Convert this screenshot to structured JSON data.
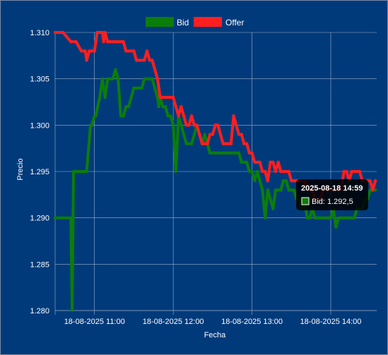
{
  "colors": {
    "background": "#003a7a",
    "grid": "#9fb0cc",
    "bid": "#0b7d0b",
    "offer": "#ff1f1f",
    "tooltip_bg": "#000000",
    "text": "#ffffff"
  },
  "chart_data": {
    "type": "line",
    "title": "",
    "xlabel": "Fecha",
    "ylabel": "Precio",
    "ylim": [
      1.28,
      1.31
    ],
    "xlim_minutes": [
      630,
      875
    ],
    "grid": true,
    "legend_position": "top",
    "legend": [
      {
        "name": "Bid",
        "color": "#0b7d0b"
      },
      {
        "name": "Offer",
        "color": "#ff1f1f"
      }
    ],
    "y_ticks": [
      "1.280",
      "1.285",
      "1.290",
      "1.295",
      "1.300",
      "1.305",
      "1.310"
    ],
    "y_tick_values": [
      1.28,
      1.285,
      1.29,
      1.295,
      1.3,
      1.305,
      1.31
    ],
    "x_ticks": [
      "18-08-2025 11:00",
      "18-08-2025 12:00",
      "18-08-2025 13:00",
      "18-08-2025 14:00"
    ],
    "x_tick_minutes": [
      660,
      720,
      780,
      840
    ],
    "series": [
      {
        "name": "Bid",
        "color": "#0b7d0b",
        "x_minutes": [
          630,
          636,
          642,
          643,
          644,
          645,
          646,
          647,
          654,
          657,
          658,
          660,
          661,
          664,
          666,
          667,
          668,
          670,
          672,
          674,
          676,
          678,
          680,
          682,
          684,
          686,
          688,
          690,
          692,
          694,
          696,
          698,
          700,
          702,
          704,
          706,
          708,
          709,
          710,
          712,
          714,
          716,
          718,
          720,
          722,
          724,
          726,
          728,
          730,
          732,
          734,
          736,
          738,
          740,
          742,
          744,
          746,
          748,
          750,
          752,
          754,
          756,
          758,
          760,
          762,
          764,
          766,
          768,
          770,
          772,
          774,
          776,
          778,
          780,
          782,
          784,
          786,
          788,
          790,
          792,
          794,
          796,
          798,
          800,
          802,
          804,
          806,
          808,
          810,
          812,
          814,
          816,
          818,
          820,
          822,
          824,
          826,
          828,
          830,
          832,
          834,
          836,
          838,
          840,
          842,
          844,
          846,
          848,
          850,
          852,
          854,
          856,
          858,
          860,
          862,
          864,
          866,
          868,
          870,
          872,
          874
        ],
        "values": [
          1.29,
          1.29,
          1.29,
          1.28,
          1.295,
          1.295,
          1.295,
          1.295,
          1.295,
          1.3,
          1.3,
          1.301,
          1.301,
          1.303,
          1.305,
          1.304,
          1.303,
          1.305,
          1.305,
          1.305,
          1.306,
          1.305,
          1.301,
          1.301,
          1.302,
          1.302,
          1.303,
          1.304,
          1.304,
          1.304,
          1.304,
          1.305,
          1.305,
          1.305,
          1.305,
          1.304,
          1.303,
          1.302,
          1.303,
          1.302,
          1.302,
          1.301,
          1.301,
          1.3,
          1.295,
          1.301,
          1.3,
          1.299,
          1.298,
          1.298,
          1.298,
          1.299,
          1.3,
          1.299,
          1.298,
          1.299,
          1.298,
          1.297,
          1.297,
          1.297,
          1.297,
          1.297,
          1.297,
          1.297,
          1.297,
          1.297,
          1.297,
          1.297,
          1.297,
          1.296,
          1.296,
          1.296,
          1.295,
          1.295,
          1.294,
          1.295,
          1.294,
          1.293,
          1.29,
          1.293,
          1.292,
          1.291,
          1.293,
          1.293,
          1.293,
          1.294,
          1.294,
          1.293,
          1.293,
          1.293,
          1.292,
          1.292,
          1.291,
          1.292,
          1.29,
          1.29,
          1.291,
          1.29,
          1.29,
          1.29,
          1.29,
          1.29,
          1.29,
          1.29,
          1.291,
          1.289,
          1.29,
          1.29,
          1.29,
          1.29,
          1.29,
          1.29,
          1.29,
          1.291,
          1.291,
          1.291,
          1.292,
          1.292,
          1.293,
          1.293,
          1.293
        ]
      },
      {
        "name": "Offer",
        "color": "#ff1f1f",
        "x_minutes": [
          630,
          636,
          642,
          646,
          650,
          653,
          654,
          656,
          657,
          658,
          660,
          661,
          662,
          664,
          666,
          667,
          668,
          670,
          672,
          674,
          676,
          678,
          680,
          682,
          684,
          686,
          688,
          690,
          692,
          694,
          696,
          698,
          700,
          702,
          704,
          706,
          708,
          709,
          710,
          712,
          714,
          716,
          718,
          720,
          722,
          724,
          726,
          728,
          730,
          732,
          734,
          736,
          738,
          740,
          742,
          744,
          746,
          748,
          750,
          752,
          754,
          756,
          758,
          760,
          762,
          764,
          766,
          768,
          770,
          772,
          774,
          776,
          778,
          780,
          782,
          784,
          786,
          788,
          790,
          792,
          794,
          796,
          798,
          800,
          802,
          804,
          806,
          808,
          810,
          812,
          814,
          816,
          818,
          820,
          822,
          824,
          826,
          828,
          830,
          832,
          834,
          836,
          838,
          840,
          842,
          844,
          846,
          848,
          850,
          852,
          854,
          856,
          858,
          860,
          862,
          864,
          866,
          868,
          870,
          872,
          874
        ],
        "values": [
          1.31,
          1.31,
          1.309,
          1.309,
          1.308,
          1.308,
          1.307,
          1.308,
          1.308,
          1.308,
          1.308,
          1.309,
          1.31,
          1.31,
          1.31,
          1.309,
          1.31,
          1.309,
          1.309,
          1.309,
          1.309,
          1.309,
          1.309,
          1.309,
          1.308,
          1.308,
          1.308,
          1.308,
          1.307,
          1.307,
          1.307,
          1.307,
          1.308,
          1.307,
          1.307,
          1.306,
          1.305,
          1.304,
          1.303,
          1.303,
          1.303,
          1.303,
          1.303,
          1.303,
          1.302,
          1.301,
          1.302,
          1.301,
          1.3,
          1.3,
          1.301,
          1.3,
          1.3,
          1.299,
          1.298,
          1.298,
          1.298,
          1.299,
          1.299,
          1.3,
          1.3,
          1.299,
          1.298,
          1.298,
          1.298,
          1.298,
          1.301,
          1.3,
          1.299,
          1.299,
          1.298,
          1.298,
          1.297,
          1.297,
          1.296,
          1.296,
          1.296,
          1.295,
          1.295,
          1.294,
          1.296,
          1.296,
          1.295,
          1.296,
          1.295,
          1.295,
          1.295,
          1.295,
          1.294,
          1.294,
          1.294,
          1.294,
          1.294,
          1.294,
          1.293,
          1.293,
          1.293,
          1.292,
          1.292,
          1.292,
          1.293,
          1.293,
          1.293,
          1.293,
          1.293,
          1.293,
          1.293,
          1.293,
          1.295,
          1.295,
          1.294,
          1.295,
          1.295,
          1.295,
          1.295,
          1.294,
          1.294,
          1.294,
          1.294,
          1.293,
          1.294
        ]
      }
    ],
    "tooltip": {
      "title": "2025-08-18 14:59",
      "label": "Bid: 1.292,5"
    }
  }
}
